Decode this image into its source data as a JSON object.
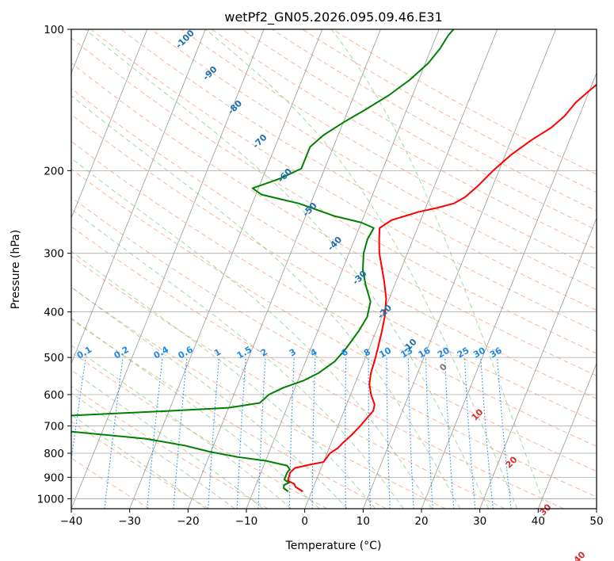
{
  "chart_data": {
    "type": "skew-t",
    "title": "wetPf2_GN05.2026.095.09.46.E31",
    "xlabel": "Temperature (°C)",
    "ylabel": "Pressure (hPa)",
    "xlim": [
      -40,
      50
    ],
    "ylim": [
      1050,
      100
    ],
    "x_ticks": [
      -40,
      -30,
      -20,
      -10,
      0,
      10,
      20,
      30,
      40,
      50
    ],
    "x_tick_labels": [
      "−40",
      "−30",
      "−20",
      "−10",
      "0",
      "10",
      "20",
      "30",
      "40",
      "50"
    ],
    "y_ticks": [
      100,
      200,
      300,
      400,
      500,
      600,
      700,
      800,
      900,
      1000
    ],
    "y_tick_labels": [
      "100",
      "200",
      "300",
      "400",
      "500",
      "600",
      "700",
      "800",
      "900",
      "1000"
    ],
    "colors": {
      "temperature": "#ff0000",
      "dewpoint": "#008000",
      "isotherm": "#999999",
      "dry_adiabat": "#f4a582",
      "moist_adiabat": "#7fc97f",
      "mixing_ratio": "#1e88e5",
      "dry_adiabat_label": "#d32f2f",
      "moist_label": "#1a6fb0",
      "grid": "#aaaaaa"
    },
    "series": [
      {
        "name": "Temperature",
        "points": [
          [
            -1.5,
            965
          ],
          [
            -3.0,
            945
          ],
          [
            -3.5,
            930
          ],
          [
            -4.8,
            915
          ],
          [
            -5.0,
            880
          ],
          [
            -4.5,
            860
          ],
          [
            -2.0,
            845
          ],
          [
            0.0,
            835
          ],
          [
            0.5,
            800
          ],
          [
            1.5,
            780
          ],
          [
            2.0,
            760
          ],
          [
            3.0,
            730
          ],
          [
            3.8,
            700
          ],
          [
            4.5,
            670
          ],
          [
            5.0,
            650
          ],
          [
            4.8,
            630
          ],
          [
            3.5,
            600
          ],
          [
            2.5,
            570
          ],
          [
            2.0,
            540
          ],
          [
            1.8,
            510
          ],
          [
            1.5,
            480
          ],
          [
            1.0,
            440
          ],
          [
            0.5,
            410
          ],
          [
            -0.5,
            375
          ],
          [
            -2.0,
            345
          ],
          [
            -3.5,
            320
          ],
          [
            -4.8,
            300
          ],
          [
            -5.8,
            280
          ],
          [
            -6.5,
            265
          ],
          [
            -5.0,
            255
          ],
          [
            -3.0,
            250
          ],
          [
            -1.0,
            245
          ],
          [
            2.0,
            240
          ],
          [
            4.5,
            235
          ],
          [
            6.0,
            228
          ],
          [
            7.5,
            215
          ],
          [
            9.0,
            200
          ],
          [
            11.0,
            185
          ],
          [
            13.5,
            172
          ],
          [
            16.0,
            162
          ],
          [
            17.5,
            153
          ],
          [
            18.5,
            143
          ],
          [
            20.0,
            135
          ],
          [
            21.5,
            128
          ],
          [
            23.5,
            120
          ],
          [
            25.5,
            113
          ],
          [
            27.0,
            107
          ],
          [
            27.8,
            100
          ]
        ]
      },
      {
        "name": "Dewpoint",
        "points": [
          [
            -4.0,
            965
          ],
          [
            -5.0,
            950
          ],
          [
            -5.2,
            935
          ],
          [
            -4.5,
            925
          ],
          [
            -5.5,
            910
          ],
          [
            -5.5,
            880
          ],
          [
            -5.3,
            865
          ],
          [
            -6.0,
            850
          ],
          [
            -10.0,
            830
          ],
          [
            -15.0,
            815
          ],
          [
            -20.0,
            795
          ],
          [
            -25.0,
            770
          ],
          [
            -32.0,
            745
          ],
          [
            -45.0,
            720
          ],
          [
            -55.0,
            700
          ],
          [
            -52.0,
            670
          ],
          [
            -30.0,
            650
          ],
          [
            -20.0,
            640
          ],
          [
            -15.0,
            625
          ],
          [
            -14.0,
            600
          ],
          [
            -12.0,
            580
          ],
          [
            -9.0,
            560
          ],
          [
            -7.0,
            540
          ],
          [
            -5.0,
            510
          ],
          [
            -4.0,
            480
          ],
          [
            -3.0,
            440
          ],
          [
            -2.5,
            410
          ],
          [
            -3.0,
            380
          ],
          [
            -5.0,
            350
          ],
          [
            -6.5,
            325
          ],
          [
            -7.5,
            300
          ],
          [
            -7.8,
            280
          ],
          [
            -7.5,
            265
          ],
          [
            -10.0,
            258
          ],
          [
            -15.0,
            250
          ],
          [
            -22.0,
            235
          ],
          [
            -29.0,
            225
          ],
          [
            -31.0,
            218
          ],
          [
            -27.0,
            208
          ],
          [
            -24.0,
            198
          ],
          [
            -24.0,
            188
          ],
          [
            -24.0,
            178
          ],
          [
            -22.5,
            168
          ],
          [
            -20.0,
            158
          ],
          [
            -17.0,
            148
          ],
          [
            -14.0,
            138
          ],
          [
            -11.5,
            128
          ],
          [
            -9.5,
            118
          ],
          [
            -8.5,
            110
          ],
          [
            -8.0,
            103
          ],
          [
            -7.5,
            100
          ]
        ]
      }
    ],
    "mixing_ratio_labels": [
      "0.1",
      "0.2",
      "0.4",
      "0.6",
      "1",
      "1.5",
      "2",
      "3",
      "4",
      "6",
      "8",
      "10",
      "13",
      "16",
      "20",
      "25",
      "30",
      "36"
    ],
    "moist_adiabat_labels": [
      "-100",
      "-90",
      "-80",
      "-70",
      "-60",
      "-50",
      "-40",
      "-30",
      "-20",
      "-10"
    ],
    "dry_adiabat_labels": [
      "0",
      "10",
      "20",
      "30",
      "40"
    ]
  }
}
